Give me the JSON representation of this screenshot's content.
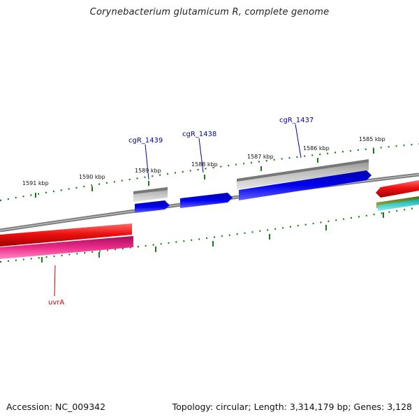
{
  "title": "Corynebacterium glutamicum R, complete genome",
  "accession_label": "Accession: NC_009342",
  "summary_label": "Topology: circular; Length: 3,314,179 bp; Genes: 3,128",
  "colors": {
    "backbone": "#808080",
    "tick": "#1a7a1a",
    "gene_forward": "#0000ee",
    "gene_grey": "#b4b4b4",
    "gene_red": "#ee1111",
    "gene_pink": "#ee2a8a",
    "gene_olive": "#6b8e23",
    "gene_cyan": "#22cccc",
    "label_blue": "#000099",
    "label_red": "#cc0000"
  },
  "kbp_labels": [
    "1591 kbp",
    "1590 kbp",
    "1589 kbp",
    "1588 kbp",
    "1587 kbp",
    "1586 kbp",
    "1585 kbp"
  ],
  "gene_labels": {
    "cgR_1439": "cgR_1439",
    "cgR_1438": "cgR_1438",
    "cgR_1437": "cgR_1437",
    "uvrA": "uvrA"
  }
}
